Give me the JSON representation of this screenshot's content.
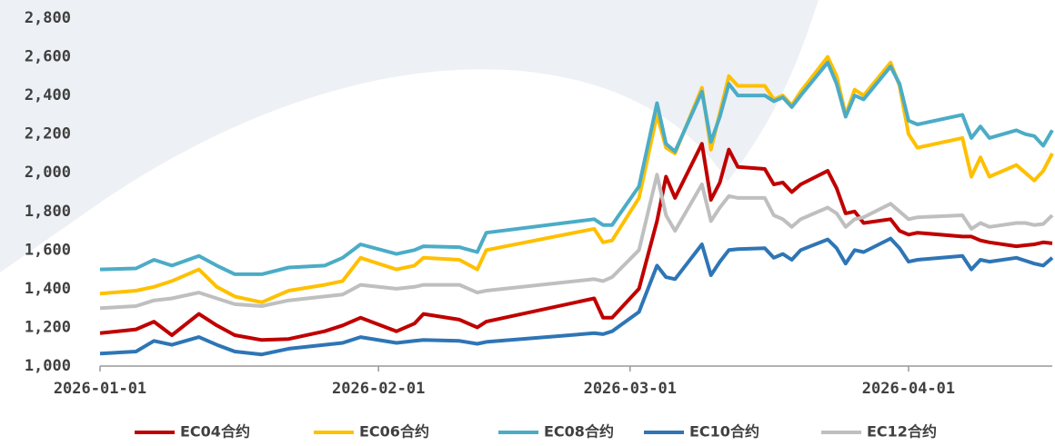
{
  "chart_data": {
    "type": "line",
    "x": [
      "2026-01-01",
      "2026-01-05",
      "2026-01-07",
      "2026-01-09",
      "2026-01-12",
      "2026-01-14",
      "2026-01-16",
      "2026-01-19",
      "2026-01-22",
      "2026-01-26",
      "2026-01-28",
      "2026-01-30",
      "2026-02-03",
      "2026-02-05",
      "2026-02-06",
      "2026-02-10",
      "2026-02-12",
      "2026-02-13",
      "2026-02-25",
      "2026-02-26",
      "2026-02-27",
      "2026-03-02",
      "2026-03-04",
      "2026-03-05",
      "2026-03-06",
      "2026-03-09",
      "2026-03-10",
      "2026-03-11",
      "2026-03-12",
      "2026-03-13",
      "2026-03-16",
      "2026-03-17",
      "2026-03-18",
      "2026-03-19",
      "2026-03-20",
      "2026-03-23",
      "2026-03-24",
      "2026-03-25",
      "2026-03-26",
      "2026-03-27",
      "2026-03-30",
      "2026-03-31",
      "2026-04-01",
      "2026-04-02",
      "2026-04-07",
      "2026-04-08",
      "2026-04-09",
      "2026-04-10",
      "2026-04-13",
      "2026-04-14",
      "2026-04-15",
      "2026-04-16",
      "2026-04-17"
    ],
    "series": [
      {
        "name": "EC04合约",
        "color": "#c00000",
        "values": [
          1170,
          1190,
          1230,
          1160,
          1270,
          1210,
          1160,
          1135,
          1140,
          1180,
          1210,
          1250,
          1180,
          1220,
          1270,
          1240,
          1200,
          1230,
          1350,
          1250,
          1250,
          1400,
          1750,
          1980,
          1870,
          2150,
          1860,
          1950,
          2120,
          2030,
          2020,
          1940,
          1950,
          1900,
          1940,
          2010,
          1920,
          1790,
          1800,
          1740,
          1760,
          1700,
          1680,
          1690,
          1670,
          1670,
          1650,
          1640,
          1620,
          1625,
          1630,
          1640,
          1635
        ]
      },
      {
        "name": "EC06合约",
        "color": "#ffc000",
        "values": [
          1375,
          1390,
          1410,
          1440,
          1500,
          1410,
          1360,
          1330,
          1390,
          1420,
          1440,
          1560,
          1500,
          1520,
          1560,
          1550,
          1500,
          1600,
          1710,
          1640,
          1650,
          1870,
          2300,
          2130,
          2100,
          2440,
          2120,
          2310,
          2500,
          2450,
          2450,
          2380,
          2400,
          2350,
          2420,
          2600,
          2500,
          2300,
          2430,
          2400,
          2570,
          2450,
          2200,
          2130,
          2180,
          1980,
          2080,
          1980,
          2040,
          2000,
          1960,
          2010,
          2100
        ]
      },
      {
        "name": "EC08合约",
        "color": "#4bacc6",
        "values": [
          1500,
          1505,
          1550,
          1520,
          1570,
          1520,
          1475,
          1475,
          1510,
          1520,
          1560,
          1630,
          1580,
          1600,
          1620,
          1615,
          1590,
          1690,
          1760,
          1730,
          1730,
          1930,
          2360,
          2150,
          2110,
          2420,
          2160,
          2290,
          2460,
          2400,
          2400,
          2370,
          2390,
          2340,
          2400,
          2570,
          2460,
          2290,
          2400,
          2380,
          2550,
          2460,
          2270,
          2250,
          2300,
          2180,
          2240,
          2180,
          2220,
          2200,
          2190,
          2140,
          2220
        ]
      },
      {
        "name": "EC10合约",
        "color": "#2e75b6",
        "values": [
          1065,
          1075,
          1130,
          1110,
          1150,
          1110,
          1075,
          1060,
          1090,
          1110,
          1120,
          1150,
          1120,
          1130,
          1135,
          1130,
          1115,
          1125,
          1170,
          1165,
          1180,
          1280,
          1520,
          1460,
          1450,
          1630,
          1470,
          1540,
          1600,
          1605,
          1610,
          1560,
          1580,
          1550,
          1600,
          1655,
          1610,
          1530,
          1600,
          1590,
          1660,
          1610,
          1540,
          1550,
          1570,
          1500,
          1550,
          1540,
          1560,
          1545,
          1530,
          1520,
          1560
        ]
      },
      {
        "name": "EC12合约",
        "color": "#bfbfbf",
        "values": [
          1300,
          1310,
          1340,
          1350,
          1380,
          1350,
          1320,
          1310,
          1340,
          1360,
          1370,
          1420,
          1400,
          1410,
          1420,
          1420,
          1380,
          1390,
          1450,
          1440,
          1460,
          1600,
          1990,
          1780,
          1700,
          1940,
          1750,
          1820,
          1880,
          1870,
          1870,
          1780,
          1760,
          1720,
          1760,
          1820,
          1790,
          1720,
          1760,
          1770,
          1840,
          1800,
          1760,
          1770,
          1780,
          1710,
          1740,
          1720,
          1740,
          1740,
          1730,
          1735,
          1780
        ]
      }
    ],
    "xlim": [
      "2026-01-01",
      "2026-04-17"
    ],
    "xticks": [
      "2026-01-01",
      "2026-02-01",
      "2026-03-01",
      "2026-04-01"
    ],
    "ylim": [
      1000,
      2800
    ],
    "yticks": [
      {
        "value": 1000,
        "label": "1,000"
      },
      {
        "value": 1200,
        "label": "1,200"
      },
      {
        "value": 1400,
        "label": "1,400"
      },
      {
        "value": 1600,
        "label": "1,600"
      },
      {
        "value": 1800,
        "label": "1,800"
      },
      {
        "value": 2000,
        "label": "2,000"
      },
      {
        "value": 2200,
        "label": "2,200"
      },
      {
        "value": 2400,
        "label": "2,400"
      },
      {
        "value": 2600,
        "label": "2,600"
      },
      {
        "value": 2800,
        "label": "2,800"
      }
    ],
    "legend": "bottom"
  }
}
